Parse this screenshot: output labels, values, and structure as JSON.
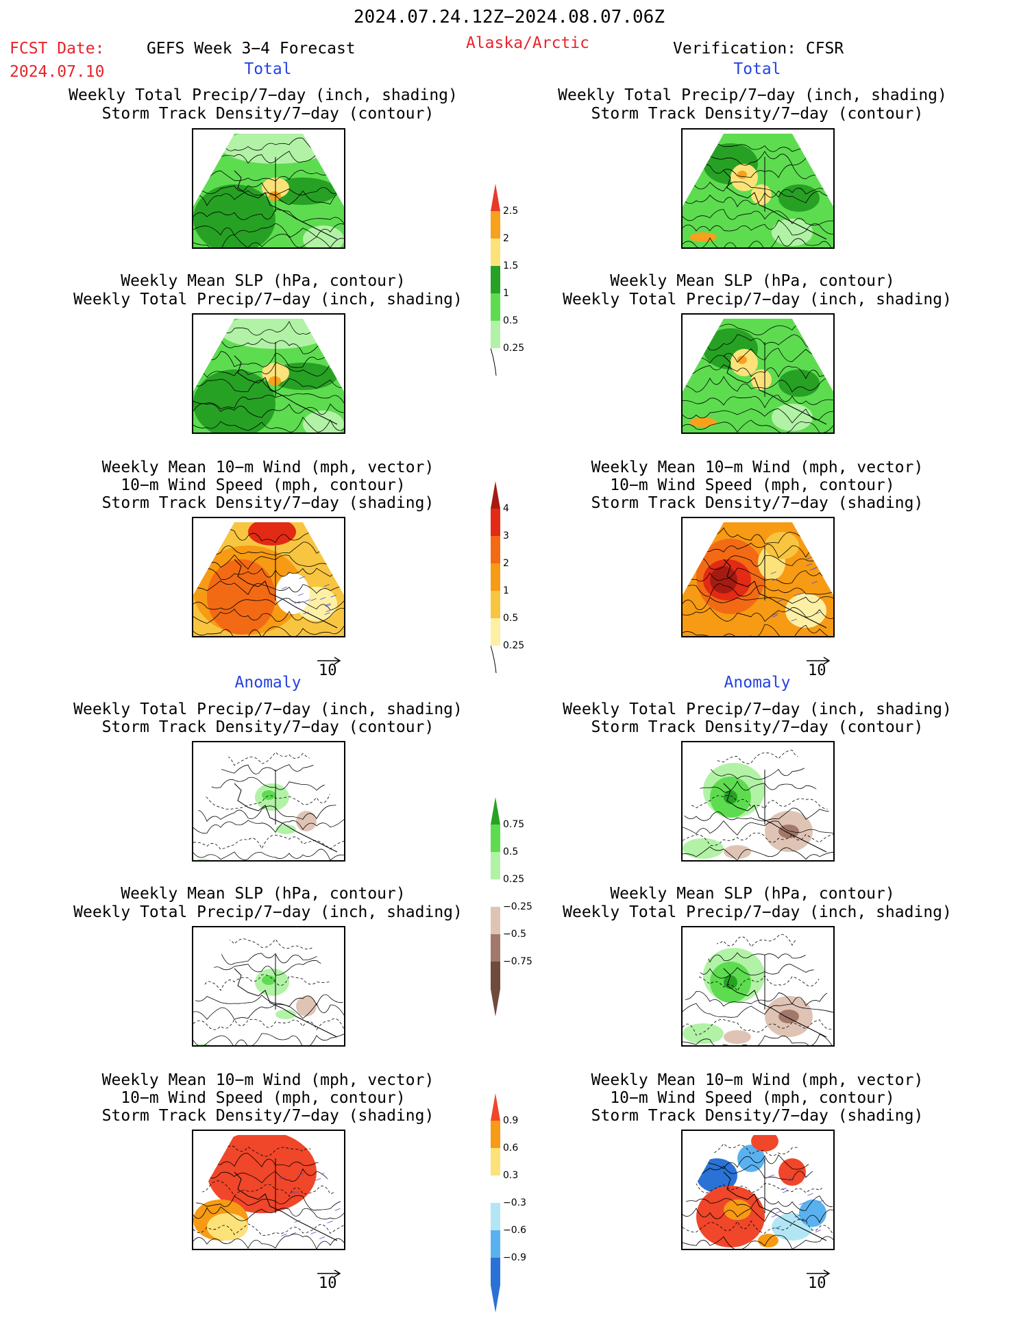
{
  "header": {
    "date_range": "2024.07.24.12Z−2024.08.07.06Z",
    "fcst_label": "FCST Date:",
    "fcst_date": "2024.07.10",
    "forecast_title": "GEFS Week 3−4 Forecast",
    "region": "Alaska/Arctic",
    "verification": "Verification: CFSR"
  },
  "sections": {
    "total": "Total",
    "anomaly": "Anomaly"
  },
  "panel_titles": {
    "precip_storm": [
      "Weekly Total Precip/7−day (inch, shading)",
      "Storm Track Density/7−day (contour)"
    ],
    "slp_precip": [
      "Weekly Mean SLP (hPa, contour)",
      "Weekly Total Precip/7−day (inch, shading)"
    ],
    "wind_storm": [
      "Weekly Mean 10−m Wind (mph, vector)",
      "10−m Wind Speed (mph, contour)",
      "Storm Track Density/7−day (shading)"
    ]
  },
  "vector_ref": "10",
  "colorbars": {
    "total_precip": {
      "labels": [
        "2.5",
        "2",
        "1.5",
        "1",
        "0.5",
        "0.25"
      ],
      "colors": [
        "#e8392a",
        "#f7a11d",
        "#fde27a",
        "#27a124",
        "#5ddc50",
        "#b2f2a6"
      ]
    },
    "total_storm": {
      "labels": [
        "4",
        "3",
        "2",
        "1",
        "0.5",
        "0.25"
      ],
      "colors": [
        "#a51b12",
        "#e22a14",
        "#f36a14",
        "#f79a14",
        "#f8c540",
        "#fdf0a5"
      ]
    },
    "anom_precip": {
      "labels": [
        "0.75",
        "0.5",
        "0.25",
        "−0.25",
        "−0.5",
        "−0.75"
      ],
      "colors": [
        "#27a124",
        "#5ddc50",
        "#b2f2a6",
        "#ffffff",
        "#dfc4b5",
        "#a2786a",
        "#6f4a3d"
      ]
    },
    "anom_storm": {
      "labels": [
        "0.9",
        "0.6",
        "0.3",
        "−0.3",
        "−0.6",
        "−0.9"
      ],
      "colors": [
        "#f0462a",
        "#f79a14",
        "#fde27a",
        "#ffffff",
        "#b2e6f4",
        "#5ab1ef",
        "#2a72d6"
      ]
    }
  }
}
